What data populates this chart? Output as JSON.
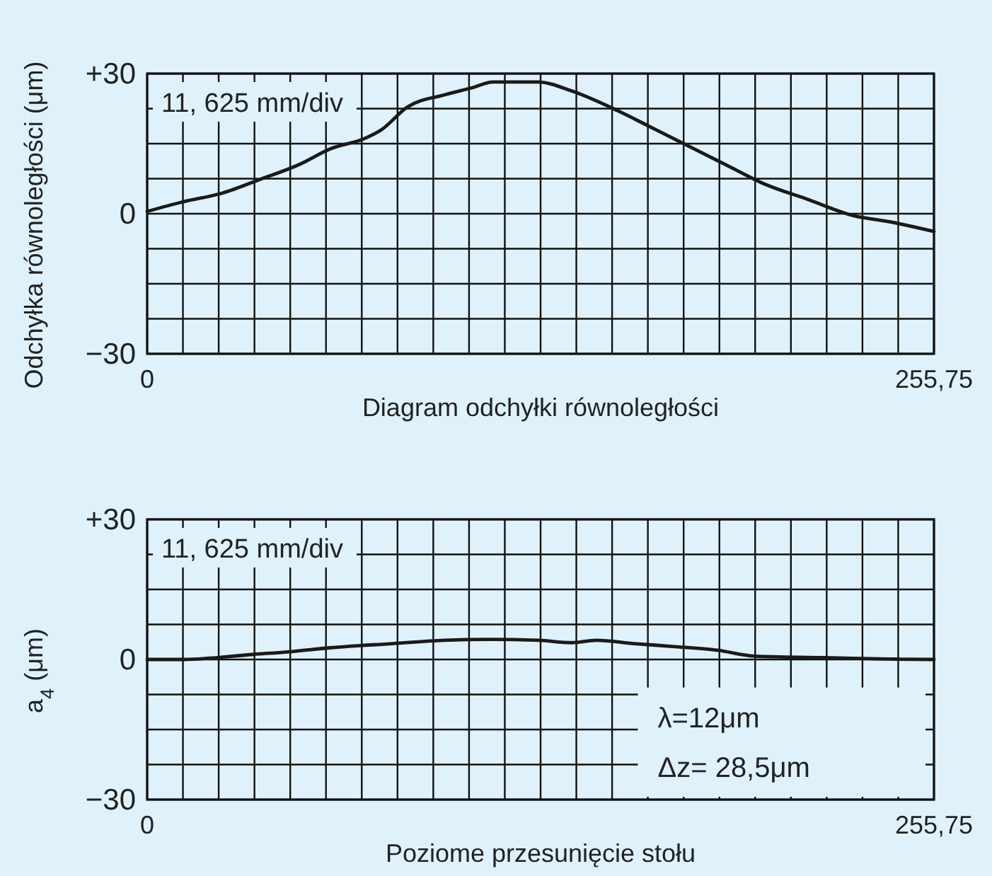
{
  "chart_data": [
    {
      "type": "line",
      "ylabel": "Odchyłka równoległości (μm)",
      "xlabel": "Diagram odchyłki równoległości",
      "annotations": [
        "11, 625 mm/div"
      ],
      "grid": true,
      "xlim": [
        0,
        255.75
      ],
      "ylim": [
        -30,
        30
      ],
      "xticks": [
        0,
        {
          "value": 11.625,
          "label": null
        },
        {
          "value": 23.25,
          "label": null
        },
        {
          "value": 34.875,
          "label": null
        },
        {
          "value": 46.5,
          "label": null
        },
        {
          "value": 58.125,
          "label": null
        },
        {
          "value": 69.75,
          "label": null
        },
        {
          "value": 81.375,
          "label": null
        },
        {
          "value": 93,
          "label": null
        },
        {
          "value": 104.625,
          "label": null
        },
        {
          "value": 116.25,
          "label": null
        },
        {
          "value": 127.875,
          "label": null
        },
        {
          "value": 139.5,
          "label": null
        },
        {
          "value": 151.125,
          "label": null
        },
        {
          "value": 162.75,
          "label": null
        },
        {
          "value": 174.375,
          "label": null
        },
        {
          "value": 186,
          "label": null
        },
        {
          "value": 197.625,
          "label": null
        },
        {
          "value": 209.25,
          "label": null
        },
        {
          "value": 220.875,
          "label": null
        },
        {
          "value": 232.5,
          "label": null
        },
        {
          "value": 244.125,
          "label": null
        },
        {
          "value": 255.75,
          "label": "255,75"
        }
      ],
      "yticks": [
        {
          "value": -30,
          "label": "−30"
        },
        {
          "value": -22.5,
          "label": null
        },
        {
          "value": -15,
          "label": null
        },
        {
          "value": -7.5,
          "label": null
        },
        0,
        {
          "value": 7.5,
          "label": null
        },
        {
          "value": 15,
          "label": null
        },
        {
          "value": 22.5,
          "label": null
        },
        {
          "value": 30,
          "label": "+30"
        }
      ],
      "series": [
        {
          "color": "#1a1a1a",
          "x": [
            0,
            12,
            24.4,
            36.9,
            49.3,
            59.6,
            71,
            76.2,
            84.5,
            96.9,
            105.2,
            112.5,
            127,
            138.3,
            152.8,
            163.2,
            175.6,
            188,
            200.5,
            215,
            229.5,
            241.9,
            255.75
          ],
          "values": [
            0.5,
            2.6,
            4.4,
            7.4,
            10.5,
            13.9,
            16.2,
            18,
            22.8,
            25.5,
            26.9,
            28.2,
            28.2,
            26.2,
            22.1,
            18.7,
            14.6,
            10.5,
            6.4,
            3,
            -0.4,
            -1.8,
            -3.8
          ]
        }
      ]
    },
    {
      "type": "line",
      "ylabel": "a$_{4}$ (μm)",
      "xlabel": "Poziome przesunięcie stołu",
      "annotations": [
        "11, 625 mm/div",
        "λ=12μm",
        "Δz= 28,5μm"
      ],
      "grid": true,
      "xlim": [
        0,
        255.75
      ],
      "ylim": [
        -30,
        30
      ],
      "xticks": [
        0,
        {
          "value": 11.625,
          "label": null
        },
        {
          "value": 23.25,
          "label": null
        },
        {
          "value": 34.875,
          "label": null
        },
        {
          "value": 46.5,
          "label": null
        },
        {
          "value": 58.125,
          "label": null
        },
        {
          "value": 69.75,
          "label": null
        },
        {
          "value": 81.375,
          "label": null
        },
        {
          "value": 93,
          "label": null
        },
        {
          "value": 104.625,
          "label": null
        },
        {
          "value": 116.25,
          "label": null
        },
        {
          "value": 127.875,
          "label": null
        },
        {
          "value": 139.5,
          "label": null
        },
        {
          "value": 151.125,
          "label": null
        },
        {
          "value": 162.75,
          "label": null
        },
        {
          "value": 174.375,
          "label": null
        },
        {
          "value": 186,
          "label": null
        },
        {
          "value": 197.625,
          "label": null
        },
        {
          "value": 209.25,
          "label": null
        },
        {
          "value": 220.875,
          "label": null
        },
        {
          "value": 232.5,
          "label": null
        },
        {
          "value": 244.125,
          "label": null
        },
        {
          "value": 255.75,
          "label": "255,75"
        }
      ],
      "yticks": [
        {
          "value": -30,
          "label": "−30"
        },
        {
          "value": -22.5,
          "label": null
        },
        {
          "value": -15,
          "label": null
        },
        {
          "value": -7.5,
          "label": null
        },
        0,
        {
          "value": 7.5,
          "label": null
        },
        {
          "value": 15,
          "label": null
        },
        {
          "value": 22.5,
          "label": null
        },
        {
          "value": 30,
          "label": "+30"
        }
      ],
      "series": [
        {
          "color": "#1a1a1a",
          "x": [
            0,
            11.9,
            34.6,
            47,
            59.3,
            79.9,
            96.5,
            111,
            127.4,
            137.8,
            146,
            158.3,
            170.7,
            185.2,
            197.6,
            220.3,
            241,
            255.75
          ],
          "values": [
            0,
            0,
            1.1,
            1.7,
            2.5,
            3.4,
            4.1,
            4.3,
            4.1,
            3.6,
            4.1,
            3.4,
            2.8,
            2,
            0.7,
            0.4,
            0.1,
            0
          ]
        }
      ]
    }
  ]
}
